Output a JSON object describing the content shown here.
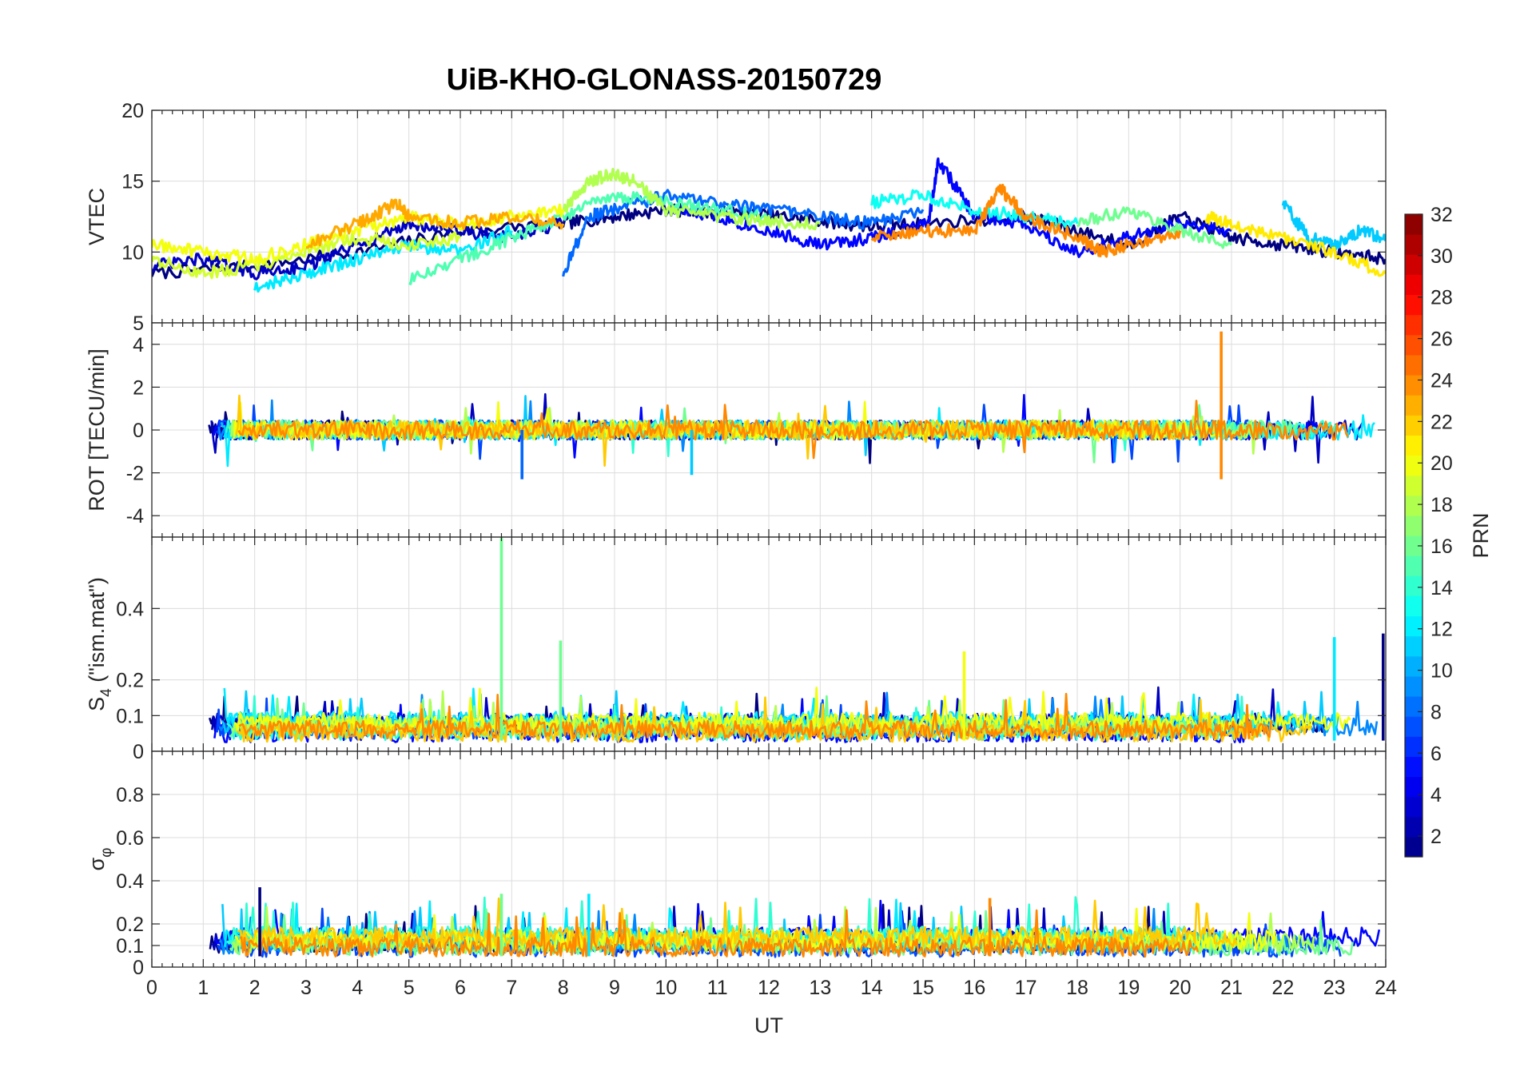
{
  "chart_data": {
    "title": "UiB-KHO-GLONASS-20150729",
    "type": "line",
    "x": {
      "label": "UT",
      "lim": [
        0,
        24
      ],
      "ticks": [
        0,
        1,
        2,
        3,
        4,
        5,
        6,
        7,
        8,
        9,
        10,
        11,
        12,
        13,
        14,
        15,
        16,
        17,
        18,
        19,
        20,
        21,
        22,
        23,
        24
      ]
    },
    "colorbar": {
      "label": "PRN",
      "lim": [
        1,
        32
      ],
      "ticks": [
        2,
        4,
        6,
        8,
        10,
        12,
        14,
        16,
        18,
        20,
        22,
        24,
        26,
        28,
        30,
        32
      ],
      "colormap": "jet"
    },
    "panels": [
      {
        "id": "vtec",
        "ylabel": "VTEC",
        "ylim": [
          5,
          20
        ],
        "yticks": [
          5,
          10,
          15,
          20
        ],
        "grid": true,
        "series": [
          {
            "prn": 1,
            "x": [
              0,
              2,
              4,
              6,
              8,
              9,
              10,
              11,
              12,
              13,
              14,
              15,
              17,
              18,
              19,
              20,
              21,
              22,
              23,
              24
            ],
            "y": [
              8.5,
              9.0,
              10.0,
              11.5,
              12.0,
              12.5,
              13.0,
              12.8,
              12.6,
              12.2,
              11.8,
              12.0,
              12.5,
              11.5,
              10.5,
              12.5,
              11.0,
              10.5,
              10.0,
              9.5
            ]
          },
          {
            "prn": 3,
            "x": [
              0,
              1,
              2,
              3,
              4,
              5,
              6,
              7,
              8
            ],
            "y": [
              9.0,
              9.5,
              8.5,
              9.0,
              10.5,
              12.0,
              11.5,
              11.0,
              12.0
            ]
          },
          {
            "prn": 5,
            "x": [
              10,
              11,
              12,
              13,
              14,
              15.1,
              15.3,
              16,
              17,
              18,
              19,
              20,
              21
            ],
            "y": [
              13.0,
              12.5,
              11.5,
              10.5,
              11.0,
              12.0,
              16.5,
              12.5,
              12.0,
              10.0,
              11.0,
              12.0,
              11.5
            ]
          },
          {
            "prn": 8,
            "x": [
              8,
              8.5,
              9,
              10,
              11,
              12,
              13,
              14,
              15
            ],
            "y": [
              8.5,
              12.5,
              13.0,
              14.0,
              13.5,
              13.0,
              12.5,
              12.0,
              13.0
            ]
          },
          {
            "prn": 11,
            "x": [
              22,
              22.5,
              23,
              23.5,
              24
            ],
            "y": [
              13.5,
              11.0,
              10.5,
              11.5,
              11.0
            ]
          },
          {
            "prn": 12,
            "x": [
              2,
              3,
              4,
              5,
              6,
              7
            ],
            "y": [
              7.5,
              8.5,
              9.5,
              10.5,
              10.0,
              11.5
            ]
          },
          {
            "prn": 13,
            "x": [
              14,
              15,
              16,
              17,
              18
            ],
            "y": [
              13.5,
              14.0,
              13.0,
              12.5,
              12.0
            ]
          },
          {
            "prn": 15,
            "x": [
              5,
              6,
              7,
              8,
              9,
              10,
              11,
              12
            ],
            "y": [
              8.0,
              9.5,
              11.0,
              12.5,
              14.0,
              13.5,
              13.0,
              12.5
            ]
          },
          {
            "prn": 16,
            "x": [
              18,
              19,
              20,
              21
            ],
            "y": [
              12.0,
              13.0,
              11.5,
              10.5
            ]
          },
          {
            "prn": 18,
            "x": [
              8,
              8.5,
              9,
              9.4,
              10,
              11,
              12,
              13
            ],
            "y": [
              13.0,
              15.0,
              15.5,
              15.0,
              13.0,
              12.5,
              12.2,
              12.0
            ]
          },
          {
            "prn": 19,
            "x": [
              0,
              1,
              2,
              3,
              4,
              5,
              6
            ],
            "y": [
              9.5,
              8.5,
              9.0,
              10.0,
              11.0,
              10.5,
              11.0
            ]
          },
          {
            "prn": 20,
            "x": [
              0,
              1,
              2,
              3,
              4,
              5,
              6,
              7,
              8
            ],
            "y": [
              10.5,
              10.0,
              9.5,
              10.5,
              11.5,
              12.5,
              12.0,
              12.5,
              13.0
            ]
          },
          {
            "prn": 21,
            "x": [
              20.5,
              21,
              22,
              23,
              24
            ],
            "y": [
              12.5,
              12.0,
              11.0,
              10.0,
              8.5
            ]
          },
          {
            "prn": 23,
            "x": [
              3,
              4,
              4.8,
              5,
              6,
              7,
              8
            ],
            "y": [
              10.5,
              12.0,
              13.5,
              12.5,
              12.0,
              12.5,
              12.0
            ]
          },
          {
            "prn": 24,
            "x": [
              14,
              15,
              16,
              16.5,
              17,
              18,
              18.5,
              19,
              20
            ],
            "y": [
              11.0,
              11.5,
              11.5,
              14.5,
              12.5,
              11.0,
              10.0,
              10.5,
              11.5
            ]
          }
        ]
      },
      {
        "id": "rot",
        "ylabel": "ROT [TECU/min]",
        "ylim": [
          -5,
          5
        ],
        "yticks": [
          -4,
          -2,
          0,
          2,
          4
        ],
        "grid": true,
        "annotations": [
          {
            "prn": 24,
            "x": 20.8,
            "y_max": 4.6,
            "y_min": -2.3
          },
          {
            "prn": 8,
            "x": 7.2,
            "y_min": -2.3
          },
          {
            "prn": 11,
            "x": 10.5,
            "y_min": -2.1
          }
        ]
      },
      {
        "id": "s4",
        "ylabel": "S4 (\"ism.mat\")",
        "ylabel_main": "S",
        "ylabel_sub": "4",
        "ylabel_rest": " (\"ism.mat\")",
        "ylim": [
          0,
          0.6
        ],
        "yticks": [
          0,
          0.1,
          0.2,
          0.4
        ],
        "grid": true,
        "annotations": [
          {
            "prn": 16,
            "x": 6.8,
            "y_max": 0.6
          },
          {
            "prn": 16,
            "x": 7.95,
            "y_max": 0.31
          },
          {
            "prn": 20,
            "x": 15.8,
            "y_max": 0.28
          },
          {
            "prn": 12,
            "x": 23.0,
            "y_max": 0.32
          },
          {
            "prn": 1,
            "x": 23.95,
            "y_max": 0.33
          }
        ]
      },
      {
        "id": "sigma_phi",
        "ylabel": "σφ",
        "ylabel_main": "σ",
        "ylabel_sub": "φ",
        "ylim": [
          0,
          1
        ],
        "yticks": [
          0,
          0.1,
          0.2,
          0.4,
          0.6,
          0.8
        ],
        "grid": true,
        "annotations": [
          {
            "prn": 1,
            "x": 2.1,
            "y_max": 0.37
          },
          {
            "prn": 16,
            "x": 6.8,
            "y_max": 0.34
          },
          {
            "prn": 12,
            "x": 8.5,
            "y_max": 0.34
          },
          {
            "prn": 24,
            "x": 16.3,
            "y_max": 0.32
          }
        ]
      }
    ]
  }
}
